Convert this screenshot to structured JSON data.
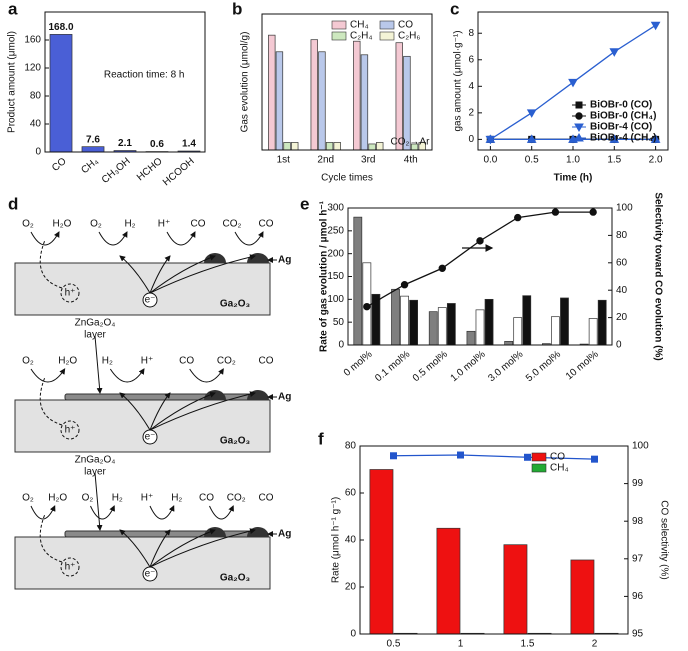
{
  "chart_data": [
    {
      "type": "bar",
      "label": "a",
      "ylabel": "Product amount (μmol)",
      "annotation": "Reaction time: 8 h",
      "categories": [
        "CO",
        "CH₄",
        "CH₃OH",
        "HCHO",
        "HCOOH"
      ],
      "values": [
        168.0,
        7.6,
        2.1,
        0.6,
        1.4
      ],
      "value_labels": [
        "168.0",
        "7.6",
        "2.1",
        "0.6",
        "1.4"
      ],
      "color": "#4a5fd6",
      "ylim": [
        0,
        200
      ],
      "yticks": [
        0,
        40,
        80,
        120,
        160
      ]
    },
    {
      "type": "bar",
      "label": "b",
      "ylabel": "Gas evolution (μmol/g)",
      "xlabel": "Cycle times",
      "annotation": "CO₂→Ar",
      "categories": [
        "1st",
        "2nd",
        "3rd",
        "4th"
      ],
      "ylim": [
        0,
        90
      ],
      "legend": "upper right",
      "series": [
        {
          "name": "CH₄",
          "color": "#f4c9d3",
          "values": [
            76,
            73,
            72,
            71
          ]
        },
        {
          "name": "CO",
          "color": "#b9c8ea",
          "values": [
            65,
            65,
            63,
            62
          ]
        },
        {
          "name": "C₂H₄",
          "color": "#cde8bf",
          "values": [
            5,
            5,
            4,
            4
          ]
        },
        {
          "name": "C₂H₆",
          "color": "#f4f4d6",
          "values": [
            5,
            5,
            5,
            5
          ]
        }
      ]
    },
    {
      "type": "line",
      "label": "c",
      "ylabel": "gas amount (μmol·g⁻¹)",
      "xlabel": "Time (h)",
      "legend": "lower right",
      "x": [
        0,
        0.5,
        1,
        1.5,
        2
      ],
      "xlim": [
        -0.15,
        2.15
      ],
      "ylim": [
        -0.8,
        9.6
      ],
      "xticks": [
        {
          "value": 0,
          "label": "0.0"
        },
        0.5,
        {
          "value": 1,
          "label": "1.0"
        },
        1.5,
        {
          "value": 2,
          "label": "2.0"
        }
      ],
      "yticks": [
        0,
        2,
        4,
        6,
        8
      ],
      "series": [
        {
          "name": "BiOBr-0 (CO)",
          "color": "#111111",
          "marker": "square",
          "values": [
            0,
            0,
            0,
            0,
            0
          ]
        },
        {
          "name": "BiOBr-0 (CH₄)",
          "color": "#111111",
          "marker": "circle",
          "values": [
            0,
            0,
            0,
            0,
            0
          ]
        },
        {
          "name": "BiOBr-4 (CO)",
          "color": "#2a5fd0",
          "marker": "triangle-down",
          "values": [
            0,
            2.0,
            4.3,
            6.6,
            8.6
          ]
        },
        {
          "name": "BiOBr-4 (CH₄)",
          "color": "#2a5fd0",
          "marker": "triangle",
          "values": [
            0,
            0,
            0,
            0,
            0
          ]
        }
      ]
    },
    {
      "type": "bar",
      "label": "e",
      "ylabel": "Rate of gas evolution / μmol h⁻¹",
      "y2label": "Selectivity toward CO evolution (%)",
      "categories": [
        "0 mol%",
        "0.1 mol%",
        "0.5 mol%",
        "1.0 mol%",
        "3.0 mol%",
        "5.0 mol%",
        "10 mol%"
      ],
      "ylim": [
        0,
        300
      ],
      "yticks": [
        0,
        50,
        100,
        150,
        200,
        250,
        300
      ],
      "y2lim": [
        0,
        100
      ],
      "y2ticks": [
        0,
        20,
        40,
        60,
        80,
        100
      ],
      "series": [
        {
          "color": "#7f7f7f",
          "values": [
            280,
            122,
            73,
            30,
            8,
            3,
            2
          ]
        },
        {
          "color": "#ffffff",
          "values": [
            180,
            107,
            82,
            77,
            60,
            62,
            58
          ]
        },
        {
          "color": "#111111",
          "values": [
            111,
            98,
            91,
            100,
            108,
            103,
            98
          ]
        },
        {
          "color": "#111111",
          "marker": "circle",
          "axis": "y2",
          "values": [
            28,
            44,
            56,
            76,
            93,
            97,
            97
          ]
        }
      ]
    },
    {
      "type": "bar",
      "label": "f",
      "ylabel": "Rate (μmol h⁻¹ g⁻¹)",
      "y2label": "CO selectivity (%)",
      "legend": "upper right",
      "categories": [
        "0.5",
        "1",
        "1.5",
        "2"
      ],
      "ylim": [
        0,
        80
      ],
      "yticks": [
        0,
        20,
        40,
        60,
        80
      ],
      "y2lim": [
        95,
        100
      ],
      "y2ticks": [
        95,
        96,
        97,
        98,
        99,
        100
      ],
      "series": [
        {
          "name": "CO",
          "color": "#ee1111",
          "values": [
            70,
            45,
            38,
            31.5
          ]
        },
        {
          "name": "CH₄",
          "color": "#22aa33",
          "values": [
            0.3,
            0.3,
            0.3,
            0.3
          ]
        },
        {
          "color": "#2255cc",
          "marker": "square",
          "axis": "y2",
          "values": [
            99.74,
            99.76,
            99.7,
            99.65
          ]
        }
      ]
    }
  ],
  "diagram": {
    "label": "d",
    "schemes": [
      {
        "molecules": [
          "O₂",
          "H₂O",
          "O₂",
          "H₂",
          "H⁺",
          "CO",
          "CO₂",
          "CO"
        ],
        "electron": "e⁻",
        "hole": "h⁺",
        "metal": "Ag",
        "substrate": "Ga₂O₃"
      },
      {
        "layer": [
          "ZnGa₂O₄",
          "layer"
        ],
        "molecules": [
          "O₂",
          "H₂O",
          "H₂",
          "H⁺",
          "CO",
          "CO₂",
          "CO"
        ],
        "electron": "e⁻",
        "hole": "h⁺",
        "metal": "Ag",
        "substrate": "Ga₂O₃"
      },
      {
        "layer": [
          "ZnGa₂O₄",
          "layer"
        ],
        "molecules": [
          "O₂",
          "H₂O",
          "O₂",
          "H₂",
          "H⁺",
          "H₂",
          "CO",
          "CO₂",
          "CO"
        ],
        "electron": "e⁻",
        "hole": "h⁺",
        "metal": "Ag",
        "substrate": "Ga₂O₃"
      }
    ]
  }
}
